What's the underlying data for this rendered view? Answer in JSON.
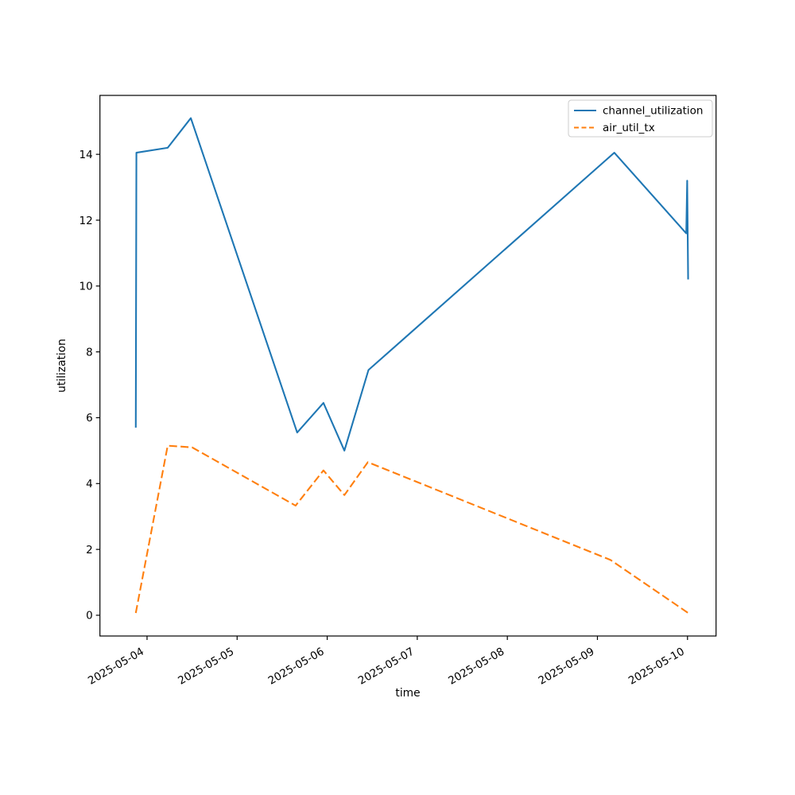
{
  "chart_data": {
    "type": "line",
    "title": "",
    "xlabel": "time",
    "ylabel": "utilization",
    "grid": false,
    "legend_position": "upper right",
    "x_epoch": "2025-05-04T00:00:00Z",
    "x_tick_labels": [
      "2025-05-04",
      "2025-05-05",
      "2025-05-06",
      "2025-05-07",
      "2025-05-08",
      "2025-05-09",
      "2025-05-10"
    ],
    "x_tick_day_offsets": [
      0,
      1,
      2,
      3,
      4,
      5,
      6
    ],
    "y_ticks": [
      0,
      2,
      4,
      6,
      8,
      10,
      12,
      14
    ],
    "xlim_days": [
      -0.523,
      6.317
    ],
    "ylim": [
      -0.63,
      15.79
    ],
    "series": [
      {
        "name": "channel_utilization",
        "color": "#1f77b4",
        "line_style": "solid",
        "points": [
          [
            "2025-05-03T21:00",
            5.7
          ],
          [
            "2025-05-03T21:10",
            14.05
          ],
          [
            "2025-05-04T05:30",
            14.2
          ],
          [
            "2025-05-04T11:40",
            15.1
          ],
          [
            "2025-05-05T16:00",
            5.55
          ],
          [
            "2025-05-05T23:00",
            6.45
          ],
          [
            "2025-05-06T04:35",
            5.0
          ],
          [
            "2025-05-06T11:00",
            7.45
          ],
          [
            "2025-05-09T04:30",
            14.05
          ],
          [
            "2025-05-09T23:40",
            11.6
          ],
          [
            "2025-05-09T23:55",
            13.2
          ],
          [
            "2025-05-10T00:10",
            10.2
          ]
        ]
      },
      {
        "name": "air_util_tx",
        "color": "#ff7f0e",
        "line_style": "dashed",
        "points": [
          [
            "2025-05-03T21:00",
            0.07
          ],
          [
            "2025-05-04T05:30",
            5.15
          ],
          [
            "2025-05-04T12:00",
            5.1
          ],
          [
            "2025-05-05T15:35",
            3.33
          ],
          [
            "2025-05-05T23:00",
            4.4
          ],
          [
            "2025-05-06T04:35",
            3.65
          ],
          [
            "2025-05-06T10:50",
            4.65
          ],
          [
            "2025-05-09T03:30",
            1.68
          ],
          [
            "2025-05-10T00:10",
            0.07
          ]
        ]
      }
    ],
    "colors": {
      "spine": "#000000",
      "background": "#ffffff",
      "legend_border": "#cccccc"
    }
  }
}
